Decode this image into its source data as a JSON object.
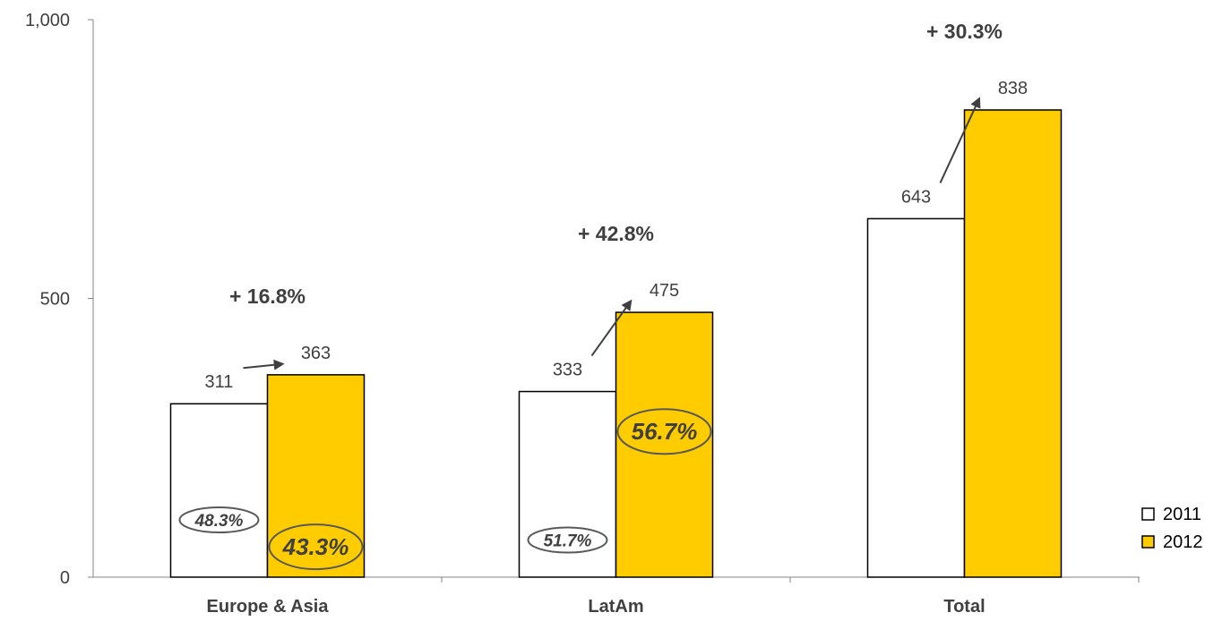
{
  "chart_data": {
    "type": "bar",
    "categories": [
      "Europe & Asia",
      "LatAm",
      "Total"
    ],
    "series": [
      {
        "name": "2011",
        "values": [
          311,
          333,
          643
        ],
        "color": "#ffffff"
      },
      {
        "name": "2012",
        "values": [
          363,
          475,
          838
        ],
        "color": "#ffcc00"
      }
    ],
    "ylim": [
      0,
      1000
    ],
    "yticks": [
      0,
      500,
      1000
    ],
    "ytick_labels": [
      "0",
      "500",
      "1,000"
    ],
    "value_labels": {
      "2011": [
        "311",
        "333",
        "643"
      ],
      "2012": [
        "363",
        "475",
        "838"
      ]
    },
    "growth_labels": [
      "+ 16.8%",
      "+ 42.8%",
      "+ 30.3%"
    ],
    "share_labels": {
      "2011": [
        "48.3%",
        "51.7%"
      ],
      "2012": [
        "43.3%",
        "56.7%"
      ]
    },
    "grid": false,
    "legend": {
      "position": "bottom-right",
      "entries": [
        "2011",
        "2012"
      ]
    }
  }
}
